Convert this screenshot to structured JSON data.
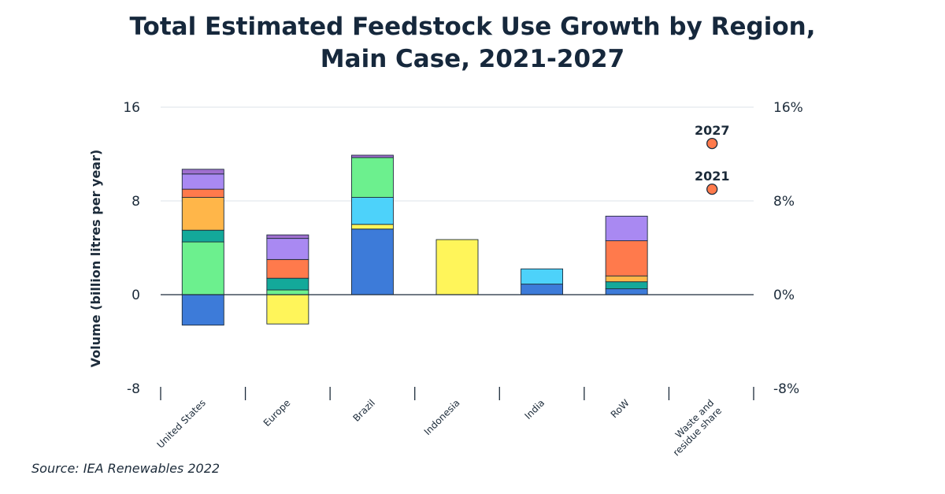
{
  "chart_data": {
    "type": "bar",
    "stacked": true,
    "title_lines": [
      "Total Estimated Feedstock Use Growth by Region,",
      "Main Case, 2021-2027"
    ],
    "ylabel": "Volume (billion litres per year)",
    "ylim": [
      -8,
      16
    ],
    "yticks": [
      "-8",
      "0",
      "8",
      "16"
    ],
    "y2lim": [
      -8,
      16
    ],
    "y2ticks": [
      "-8%",
      "0%",
      "8%",
      "16%"
    ],
    "grid": true,
    "legend": "none",
    "categories": [
      "United States",
      "Europe",
      "Brazil",
      "Indonesia",
      "India",
      "RoW",
      "Waste and residue share"
    ],
    "series": [
      {
        "name": "segment-1",
        "color": "#3d7bd9",
        "values": [
          -2.6,
          0.0,
          5.6,
          0.0,
          0.9,
          0.5,
          0.0
        ]
      },
      {
        "name": "segment-2",
        "color": "#fff55a",
        "values": [
          0.0,
          -2.5,
          0.4,
          4.7,
          0.0,
          0.0,
          0.0
        ]
      },
      {
        "name": "segment-3",
        "color": "#4dd2fa",
        "values": [
          0.0,
          0.0,
          2.3,
          0.0,
          1.3,
          0.0,
          0.0
        ]
      },
      {
        "name": "segment-4",
        "color": "#6cf08e",
        "values": [
          4.5,
          0.4,
          3.4,
          0.0,
          0.0,
          0.0,
          0.0
        ]
      },
      {
        "name": "segment-5",
        "color": "#13a99a",
        "values": [
          1.0,
          1.0,
          0.0,
          0.0,
          0.0,
          0.6,
          0.0
        ]
      },
      {
        "name": "segment-6",
        "color": "#ffb649",
        "values": [
          2.8,
          0.0,
          0.0,
          0.0,
          0.0,
          0.5,
          0.0
        ]
      },
      {
        "name": "segment-7",
        "color": "#ff7a4c",
        "values": [
          0.7,
          1.6,
          0.0,
          0.0,
          0.0,
          3.0,
          0.0
        ]
      },
      {
        "name": "segment-8",
        "color": "#a989f2",
        "values": [
          1.3,
          1.8,
          0.0,
          0.0,
          0.0,
          2.1,
          0.0
        ]
      },
      {
        "name": "segment-9",
        "color": "#9f6fcf",
        "values": [
          0.4,
          0.3,
          0.2,
          0.0,
          0.0,
          0.0,
          0.0
        ]
      }
    ],
    "negative_offset_values": [
      0.0,
      0.0,
      0.0,
      0.0,
      0.0,
      -0.2,
      0.0
    ],
    "points": [
      {
        "label": "2027",
        "category": "Waste and residue share",
        "value": 12.9
      },
      {
        "label": "2021",
        "category": "Waste and residue share",
        "value": 9.0
      }
    ],
    "point_color": "#ff7a4c"
  },
  "source": "Source: IEA Renewables 2022"
}
